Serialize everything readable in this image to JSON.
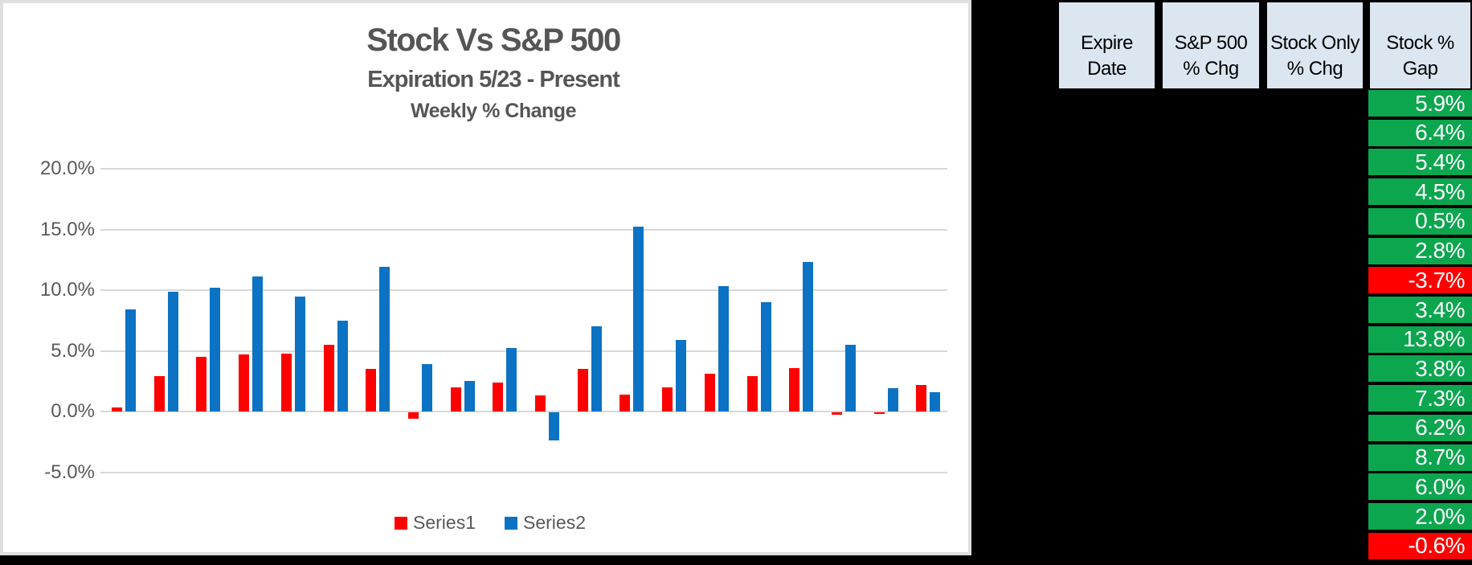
{
  "chart": {
    "title": "Stock Vs S&P 500",
    "subtitle": "Expiration 5/23 - Present",
    "subtitle2": "Weekly % Change"
  },
  "chart_data": {
    "type": "bar",
    "title": "Stock Vs S&P 500",
    "subtitle": "Expiration 5/23 - Present",
    "sub_subtitle": "Weekly % Change",
    "x_axis": {
      "tick_labels_visible": false,
      "n_groups": 20
    },
    "y_axis": {
      "tick_labels": [
        "20.0%",
        "15.0%",
        "10.0%",
        "5.0%",
        "0.0%",
        "-5.0%"
      ],
      "tick_values": [
        20,
        15,
        10,
        5,
        0,
        -5
      ],
      "min": -5,
      "max": 20,
      "unit": "percent",
      "gridlines": true
    },
    "legend": {
      "position": "bottom",
      "entries": [
        "Series1",
        "Series2"
      ]
    },
    "series": [
      {
        "name": "Series1",
        "color": "#ff0000",
        "values": [
          0.3,
          2.9,
          4.5,
          4.7,
          4.8,
          5.5,
          3.5,
          -0.5,
          2.0,
          2.4,
          1.3,
          3.5,
          1.4,
          2.0,
          3.1,
          2.9,
          3.6,
          -0.2,
          -0.1,
          2.2
        ]
      },
      {
        "name": "Series2",
        "color": "#0c72c4",
        "values": [
          8.4,
          9.9,
          10.2,
          11.1,
          9.5,
          7.5,
          11.9,
          3.9,
          2.5,
          5.2,
          -2.3,
          7.0,
          15.2,
          5.9,
          10.3,
          9.0,
          12.3,
          5.5,
          1.9,
          1.6
        ]
      }
    ]
  },
  "table": {
    "headers": [
      {
        "line1": "Expire",
        "line2": "Date",
        "redacted_values": true
      },
      {
        "line1": "S&P 500",
        "line2": "% Chg",
        "redacted_values": true
      },
      {
        "line1": "Stock Only",
        "line2": "% Chg",
        "redacted_values": true
      },
      {
        "line1": "Stock %",
        "line2": "Gap",
        "redacted_values": false
      }
    ],
    "gap_column": {
      "values": [
        "5.9%",
        "6.4%",
        "5.4%",
        "4.5%",
        "0.5%",
        "2.8%",
        "-3.7%",
        "3.4%",
        "13.8%",
        "3.8%",
        "7.3%",
        "6.2%",
        "8.7%",
        "6.0%",
        "2.0%",
        "-0.6%"
      ]
    }
  },
  "colors": {
    "positive_cell": "#0ca64f",
    "negative_cell": "#fe0000",
    "header_bg": "#dce6f1",
    "series1": "#ff0000",
    "series2": "#0c72c4",
    "gridline": "#d8d8d8",
    "axis_text": "#595959",
    "title_text": "#555555",
    "background": "#000000"
  }
}
